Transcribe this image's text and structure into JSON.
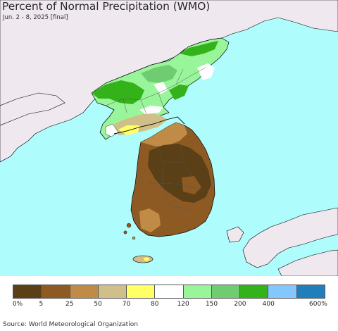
{
  "title": "Percent of Normal Precipitation (WMO)",
  "subtitle": "Jun. 2 - 8, 2025 [final]",
  "source": "Source: World Meteorological Organization",
  "colors": {
    "ocean": "#aefcfc",
    "land_outside": "#efe9ef",
    "border": "#000000"
  },
  "legend": {
    "colors": [
      "#5a3f17",
      "#8e5a23",
      "#bf8b47",
      "#d0bf88",
      "#ffff66",
      "#ffffff",
      "#99f599",
      "#70cc70",
      "#33b21a",
      "#82c8ff",
      "#1f7ebb"
    ],
    "labels": [
      "0%",
      "5",
      "25",
      "50",
      "70",
      "80",
      "120",
      "150",
      "200",
      "400",
      "600%"
    ]
  }
}
